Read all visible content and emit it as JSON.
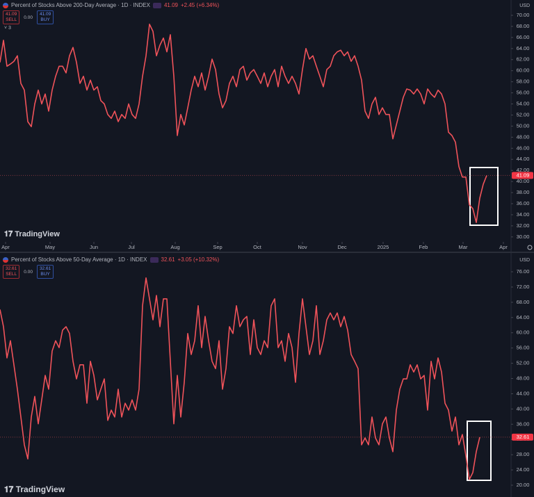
{
  "chart_data": [
    {
      "type": "line",
      "title": "Percent of Stocks Above 200-Day Average · 1D · INDEX",
      "last_value": 41.09,
      "change": "+2.45 (+6.34%)",
      "sell_label": "SELL",
      "buy_label": "BUY",
      "spread": "0.00",
      "currency": "USD",
      "indicator_count": 3,
      "series": [
        {
          "color": "#f0535a",
          "values": [
            61.5,
            65.5,
            60.8,
            61.2,
            61.7,
            62.7,
            57.7,
            56.5,
            50.8,
            49.9,
            54.0,
            56.5,
            54.0,
            55.8,
            52.7,
            56.5,
            59.0,
            60.8,
            60.8,
            59.6,
            62.7,
            64.2,
            61.5,
            57.7,
            59.0,
            56.5,
            58.3,
            56.5,
            57.1,
            54.6,
            54.0,
            52.1,
            51.4,
            52.7,
            50.8,
            52.1,
            51.4,
            54.0,
            52.1,
            51.4,
            54.0,
            59.0,
            62.7,
            68.4,
            67.1,
            62.7,
            64.6,
            65.9,
            63.4,
            66.5,
            59.0,
            48.3,
            52.1,
            50.2,
            53.3,
            56.5,
            59.0,
            57.1,
            59.6,
            56.5,
            59.0,
            62.1,
            60.2,
            55.8,
            53.3,
            54.6,
            57.7,
            59.0,
            57.1,
            60.2,
            60.8,
            58.3,
            59.6,
            60.2,
            59.0,
            57.7,
            59.6,
            57.1,
            59.0,
            60.2,
            57.1,
            60.8,
            59.0,
            57.7,
            59.0,
            57.7,
            55.8,
            60.2,
            64.0,
            62.1,
            62.7,
            60.8,
            59.0,
            57.1,
            60.2,
            60.8,
            62.7,
            63.4,
            63.7,
            62.7,
            63.4,
            61.7,
            62.7,
            60.8,
            58.3,
            52.7,
            51.4,
            54.0,
            55.2,
            52.1,
            53.3,
            52.1,
            52.1,
            47.7,
            50.2,
            52.7,
            55.2,
            56.7,
            56.5,
            55.8,
            56.7,
            55.8,
            54.0,
            56.7,
            55.8,
            55.2,
            56.5,
            55.8,
            54.0,
            48.9,
            48.3,
            47.1,
            42.7,
            40.8,
            40.8,
            35.8,
            35.1,
            32.6,
            37.0,
            39.5,
            41.09
          ]
        }
      ],
      "xlim": [
        0,
        147
      ],
      "ylim": [
        29.1,
        72.76
      ],
      "xticks": [
        {
          "value": 1.6,
          "label": "Apr"
        },
        {
          "value": 14.4,
          "label": "May"
        },
        {
          "value": 27,
          "label": "Jun"
        },
        {
          "value": 37.8,
          "label": "Jul"
        },
        {
          "value": 50.4,
          "label": "Aug"
        },
        {
          "value": 62.6,
          "label": "Sep"
        },
        {
          "value": 74,
          "label": "Oct"
        },
        {
          "value": 87,
          "label": "Nov"
        },
        {
          "value": 98.4,
          "label": "Dec"
        },
        {
          "value": 110.2,
          "label": "2025"
        },
        {
          "value": 121.8,
          "label": "Feb"
        },
        {
          "value": 133.2,
          "label": "Mar"
        },
        {
          "value": 144.8,
          "label": "Apr"
        }
      ],
      "yticks": [
        {
          "value": 30,
          "label": "30.00"
        },
        {
          "value": 32,
          "label": "32.00"
        },
        {
          "value": 34,
          "label": "34.00"
        },
        {
          "value": 36,
          "label": "36.00"
        },
        {
          "value": 38,
          "label": "38.00"
        },
        {
          "value": 40,
          "label": "40.00"
        },
        {
          "value": 42,
          "label": "42.00"
        },
        {
          "value": 44,
          "label": "44.00"
        },
        {
          "value": 46,
          "label": "46.00"
        },
        {
          "value": 48,
          "label": "48.00"
        },
        {
          "value": 50,
          "label": "50.00"
        },
        {
          "value": 52,
          "label": "52.00"
        },
        {
          "value": 54,
          "label": "54.00"
        },
        {
          "value": 56,
          "label": "56.00"
        },
        {
          "value": 58,
          "label": "58.00"
        },
        {
          "value": 60,
          "label": "60.00"
        },
        {
          "value": 62,
          "label": "62.00"
        },
        {
          "value": 64,
          "label": "64.00"
        },
        {
          "value": 66,
          "label": "66.00"
        },
        {
          "value": 68,
          "label": "68.00"
        },
        {
          "value": 70,
          "label": "70.00"
        }
      ],
      "grid": false
    },
    {
      "type": "line",
      "title": "Percent of Stocks Above 50-Day Average · 1D · INDEX",
      "last_value": 32.61,
      "change": "+3.05 (+10.32%)",
      "sell_label": "SELL",
      "buy_label": "BUY",
      "spread": "0.00",
      "currency": "USD",
      "series": [
        {
          "color": "#f0535a",
          "values": [
            66.1,
            61.6,
            53.4,
            57.9,
            51.6,
            45.2,
            37.9,
            30.6,
            26.9,
            37.9,
            43.3,
            36.1,
            42.4,
            48.8,
            45.2,
            55.2,
            57.9,
            56.1,
            60.7,
            61.6,
            59.8,
            52.5,
            47.9,
            51.6,
            51.6,
            41.5,
            52.5,
            48.8,
            42.4,
            45.2,
            47.9,
            37.0,
            39.7,
            37.9,
            45.2,
            37.9,
            41.5,
            39.7,
            42.4,
            39.7,
            45.2,
            67.1,
            74.4,
            68.9,
            63.4,
            69.8,
            61.6,
            68.9,
            68.9,
            52.5,
            36.1,
            48.8,
            37.9,
            47.0,
            59.8,
            54.3,
            57.9,
            67.1,
            56.1,
            64.3,
            57.9,
            52.5,
            50.6,
            57.9,
            45.2,
            50.6,
            61.6,
            59.8,
            67.1,
            61.6,
            63.4,
            64.3,
            54.3,
            63.4,
            56.1,
            54.3,
            57.9,
            56.1,
            67.1,
            68.9,
            56.1,
            57.9,
            52.5,
            59.8,
            56.1,
            47.0,
            59.8,
            68.9,
            61.6,
            54.3,
            57.9,
            67.1,
            54.3,
            57.9,
            63.4,
            65.2,
            63.4,
            65.2,
            61.6,
            64.3,
            60.7,
            54.3,
            52.5,
            50.6,
            30.6,
            32.4,
            30.6,
            37.9,
            32.4,
            30.6,
            36.1,
            37.9,
            32.4,
            28.8,
            39.7,
            45.2,
            47.9,
            47.9,
            51.6,
            49.7,
            51.6,
            47.9,
            48.8,
            39.7,
            52.5,
            47.9,
            53.4,
            49.7,
            41.5,
            39.7,
            34.2,
            37.9,
            30.6,
            33.3,
            27.8,
            21.5,
            23.3,
            28.8,
            32.61
          ]
        }
      ],
      "xlim": [
        0,
        147
      ],
      "ylim": [
        16.9,
        80.38
      ],
      "yticks": [
        {
          "value": 20,
          "label": "20.00"
        },
        {
          "value": 24,
          "label": "24.00"
        },
        {
          "value": 28,
          "label": "28.00"
        },
        {
          "value": 32,
          "label": "32.00"
        },
        {
          "value": 36,
          "label": "36.00"
        },
        {
          "value": 40,
          "label": "40.00"
        },
        {
          "value": 44,
          "label": "44.00"
        },
        {
          "value": 48,
          "label": "48.00"
        },
        {
          "value": 52,
          "label": "52.00"
        },
        {
          "value": 56,
          "label": "56.00"
        },
        {
          "value": 60,
          "label": "60.00"
        },
        {
          "value": 64,
          "label": "64.00"
        },
        {
          "value": 68,
          "label": "68.00"
        },
        {
          "value": 72,
          "label": "72.00"
        },
        {
          "value": 76,
          "label": "76.00"
        }
      ],
      "grid": false
    }
  ],
  "brand": "TradingView"
}
